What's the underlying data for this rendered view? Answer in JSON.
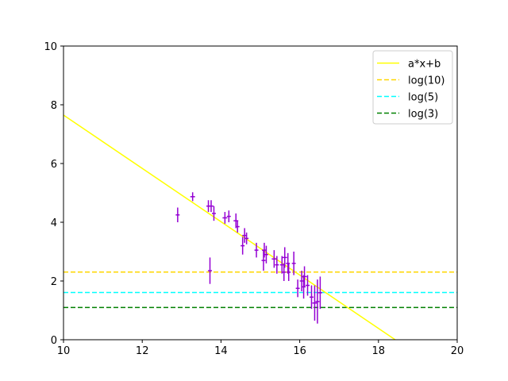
{
  "chart_data": {
    "type": "scatter",
    "title": "",
    "xlabel": "",
    "ylabel": "",
    "xlim": [
      10,
      20
    ],
    "ylim": [
      0,
      10
    ],
    "xticks": [
      10,
      12,
      14,
      16,
      18,
      20
    ],
    "yticks": [
      0,
      2,
      4,
      6,
      8,
      10
    ],
    "grid": false,
    "legend_position": "top-right",
    "fit_line": {
      "name": "a*x+b",
      "slope": -0.908,
      "intercept": 16.73,
      "color": "#ffff00"
    },
    "horizontal_lines": [
      {
        "name": "log(10)",
        "y": 2.303,
        "color": "#ffd700",
        "style": "dashed"
      },
      {
        "name": "log(5)",
        "y": 1.609,
        "color": "#00ffff",
        "style": "dashed"
      },
      {
        "name": "log(3)",
        "y": 1.099,
        "color": "#008000",
        "style": "dashed"
      }
    ],
    "scatter_color": "#9400d3",
    "points": [
      {
        "x": 12.9,
        "y": 4.25,
        "xerr": 0.05,
        "yerr": 0.25
      },
      {
        "x": 13.28,
        "y": 4.87,
        "xerr": 0.06,
        "yerr": 0.15
      },
      {
        "x": 13.68,
        "y": 4.55,
        "xerr": 0.05,
        "yerr": 0.2
      },
      {
        "x": 13.72,
        "y": 2.35,
        "xerr": 0.05,
        "yerr": 0.45
      },
      {
        "x": 13.75,
        "y": 4.55,
        "xerr": 0.06,
        "yerr": 0.2
      },
      {
        "x": 13.82,
        "y": 4.3,
        "xerr": 0.05,
        "yerr": 0.25
      },
      {
        "x": 14.1,
        "y": 4.15,
        "xerr": 0.06,
        "yerr": 0.2
      },
      {
        "x": 14.2,
        "y": 4.2,
        "xerr": 0.05,
        "yerr": 0.2
      },
      {
        "x": 14.38,
        "y": 4.05,
        "xerr": 0.06,
        "yerr": 0.25
      },
      {
        "x": 14.42,
        "y": 3.85,
        "xerr": 0.05,
        "yerr": 0.2
      },
      {
        "x": 14.55,
        "y": 3.2,
        "xerr": 0.05,
        "yerr": 0.3
      },
      {
        "x": 14.6,
        "y": 3.55,
        "xerr": 0.06,
        "yerr": 0.25
      },
      {
        "x": 14.65,
        "y": 3.45,
        "xerr": 0.05,
        "yerr": 0.2
      },
      {
        "x": 14.9,
        "y": 3.05,
        "xerr": 0.05,
        "yerr": 0.25
      },
      {
        "x": 15.08,
        "y": 2.7,
        "xerr": 0.05,
        "yerr": 0.35
      },
      {
        "x": 15.1,
        "y": 3.05,
        "xerr": 0.06,
        "yerr": 0.25
      },
      {
        "x": 15.15,
        "y": 2.9,
        "xerr": 0.05,
        "yerr": 0.3
      },
      {
        "x": 15.35,
        "y": 2.75,
        "xerr": 0.06,
        "yerr": 0.3
      },
      {
        "x": 15.42,
        "y": 2.55,
        "xerr": 0.05,
        "yerr": 0.3
      },
      {
        "x": 15.55,
        "y": 2.55,
        "xerr": 0.05,
        "yerr": 0.3
      },
      {
        "x": 15.6,
        "y": 2.3,
        "xerr": 0.05,
        "yerr": 0.3
      },
      {
        "x": 15.62,
        "y": 2.8,
        "xerr": 0.06,
        "yerr": 0.35
      },
      {
        "x": 15.7,
        "y": 2.6,
        "xerr": 0.05,
        "yerr": 0.35
      },
      {
        "x": 15.72,
        "y": 2.3,
        "xerr": 0.05,
        "yerr": 0.3
      },
      {
        "x": 15.85,
        "y": 2.6,
        "xerr": 0.05,
        "yerr": 0.4
      },
      {
        "x": 15.95,
        "y": 1.75,
        "xerr": 0.05,
        "yerr": 0.3
      },
      {
        "x": 16.05,
        "y": 2.0,
        "xerr": 0.05,
        "yerr": 0.35
      },
      {
        "x": 16.1,
        "y": 1.8,
        "xerr": 0.05,
        "yerr": 0.4
      },
      {
        "x": 16.12,
        "y": 2.15,
        "xerr": 0.06,
        "yerr": 0.35
      },
      {
        "x": 16.2,
        "y": 1.85,
        "xerr": 0.05,
        "yerr": 0.35
      },
      {
        "x": 16.3,
        "y": 1.45,
        "xerr": 0.05,
        "yerr": 0.4
      },
      {
        "x": 16.38,
        "y": 1.25,
        "xerr": 0.06,
        "yerr": 0.6
      },
      {
        "x": 16.45,
        "y": 1.3,
        "xerr": 0.05,
        "yerr": 0.75
      },
      {
        "x": 16.52,
        "y": 1.6,
        "xerr": 0.05,
        "yerr": 0.55
      }
    ]
  }
}
